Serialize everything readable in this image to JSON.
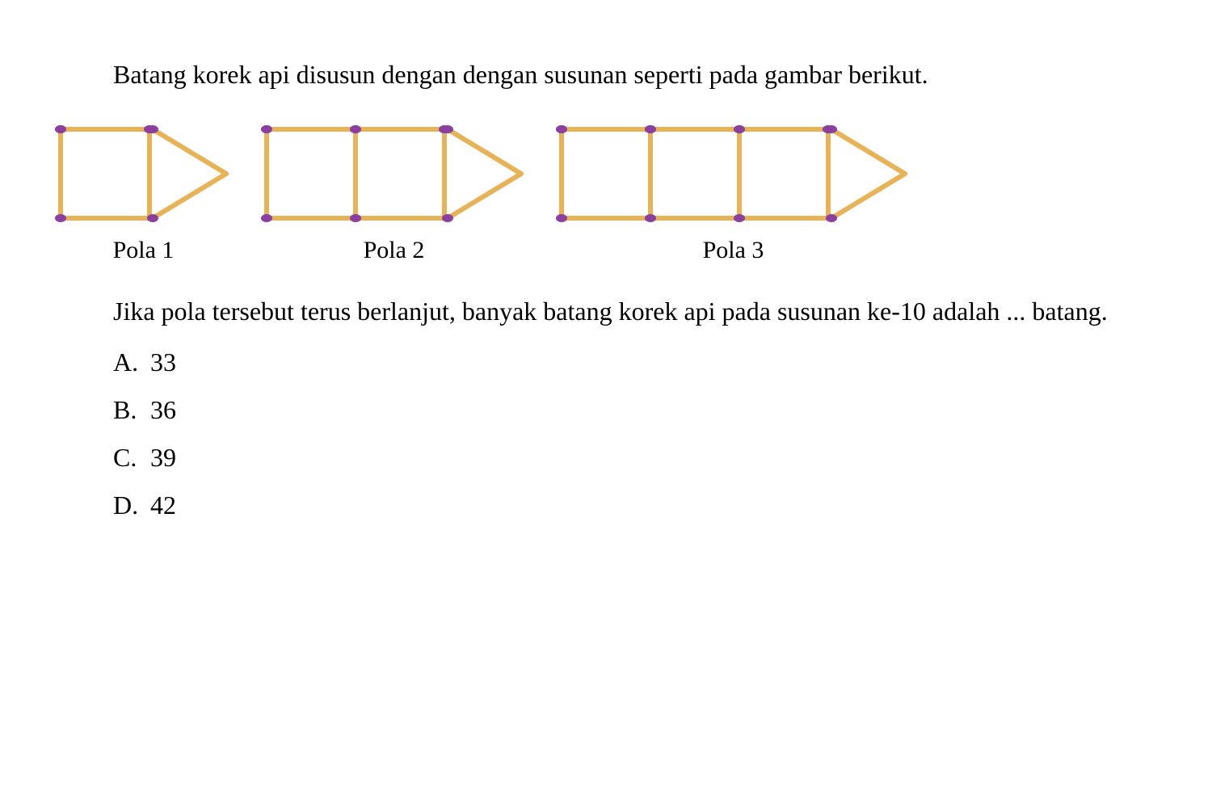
{
  "question": {
    "intro": "Batang korek api disusun dengan dengan susunan seperti pada gambar berikut.",
    "followup": "Jika pola tersebut terus berlanjut, banyak batang korek api pada susunan ke-10 adalah ... batang."
  },
  "options": [
    {
      "letter": "A.",
      "value": "33"
    },
    {
      "letter": "B.",
      "value": "36"
    },
    {
      "letter": "C.",
      "value": "39"
    },
    {
      "letter": "D.",
      "value": "42"
    }
  ],
  "patterns": [
    {
      "label": "Pola 1",
      "squares": 1
    },
    {
      "label": "Pola 2",
      "squares": 2
    },
    {
      "label": "Pola 3",
      "squares": 3
    }
  ],
  "style": {
    "match_color": "#e8b356",
    "head_color": "#8b3fa0",
    "stroke_width": 6,
    "head_rx": 7,
    "head_ry": 5,
    "square_side": 110,
    "triangle_width": 95,
    "font_size_body": 32,
    "font_size_label": 30,
    "background": "#ffffff",
    "text_color": "#000000"
  }
}
